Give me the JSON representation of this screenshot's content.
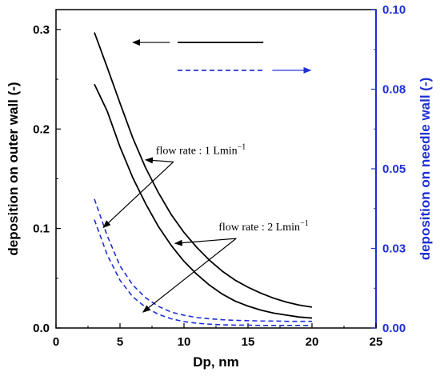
{
  "chart_data": {
    "type": "line",
    "xlabel": "Dp, nm",
    "ylabel_left": "deposition on outer wall (-)",
    "ylabel_right": "deposition on needle wall (-)",
    "xlim": [
      0,
      25
    ],
    "ylim_left": [
      0,
      0.32
    ],
    "ylim_right": [
      0,
      0.1
    ],
    "x_ticks": [
      "0",
      "5",
      "10",
      "15",
      "20",
      "25"
    ],
    "y_left_ticks": [
      "0.0",
      "0.1",
      "0.2",
      "0.3"
    ],
    "y_right_ticks": [
      "0.00",
      "0.03",
      "0.05",
      "0.08",
      "0.10"
    ],
    "grid": false,
    "series": [
      {
        "axis": "left",
        "style": "solid",
        "color": "#000000",
        "x": [
          3,
          4,
          5,
          6,
          7,
          8,
          9,
          10,
          11,
          12,
          13,
          14,
          15,
          16,
          17,
          18,
          19,
          20
        ],
        "y": [
          0.297,
          0.262,
          0.226,
          0.191,
          0.161,
          0.136,
          0.114,
          0.096,
          0.081,
          0.068,
          0.057,
          0.048,
          0.041,
          0.035,
          0.03,
          0.026,
          0.023,
          0.021
        ]
      },
      {
        "axis": "left",
        "style": "solid",
        "color": "#000000",
        "x": [
          3,
          4,
          5,
          6,
          7,
          8,
          9,
          10,
          11,
          12,
          13,
          14,
          15,
          16,
          17,
          18,
          19,
          20
        ],
        "y": [
          0.245,
          0.218,
          0.182,
          0.151,
          0.125,
          0.102,
          0.083,
          0.067,
          0.054,
          0.043,
          0.034,
          0.027,
          0.022,
          0.018,
          0.015,
          0.013,
          0.011,
          0.01
        ]
      },
      {
        "axis": "right",
        "style": "dashed",
        "color": "#1f2fd6",
        "x": [
          3,
          4,
          5,
          6,
          7,
          8,
          9,
          10,
          11,
          12,
          13,
          14,
          15,
          16,
          17,
          18,
          19,
          20
        ],
        "y": [
          0.0405,
          0.029,
          0.0195,
          0.0135,
          0.0095,
          0.0068,
          0.005,
          0.004,
          0.0033,
          0.0029,
          0.0026,
          0.0024,
          0.0023,
          0.0022,
          0.0022,
          0.0021,
          0.0021,
          0.0021
        ]
      },
      {
        "axis": "right",
        "style": "dashed",
        "color": "#1f2fd6",
        "x": [
          3,
          4,
          5,
          6,
          7,
          8,
          9,
          10,
          11,
          12,
          13,
          14,
          15,
          16,
          17,
          18,
          19,
          20
        ],
        "y": [
          0.034,
          0.023,
          0.015,
          0.0098,
          0.0065,
          0.0043,
          0.0029,
          0.002,
          0.0015,
          0.0012,
          0.001,
          0.0009,
          0.0009,
          0.0008,
          0.0008,
          0.0008,
          0.0008,
          0.0008
        ]
      }
    ],
    "annotations": [
      {
        "text": "flow rate : 1 Lmin",
        "superscript": "−1",
        "x": 7.8,
        "y_left": 0.175,
        "arrows_to": [
          [
            7.0,
            0.169
          ],
          [
            3.7,
            0.101
          ]
        ]
      },
      {
        "text": "flow rate : 2 Lmin",
        "superscript": "−1",
        "x": 12.7,
        "y_left": 0.098,
        "arrows_to": [
          [
            9.3,
            0.085
          ],
          [
            6.8,
            0.016
          ]
        ]
      }
    ],
    "legend_indicators": [
      {
        "axis": "left",
        "style": "solid",
        "color": "#000000",
        "x": [
          9.5,
          16.2
        ],
        "y_left": 0.287,
        "arrow": "left",
        "arrow_x": [
          8.9,
          6.0
        ]
      },
      {
        "axis": "right",
        "style": "dashed",
        "color": "#1f2fd6",
        "x": [
          9.5,
          16.2
        ],
        "y_left": 0.259,
        "arrow": "right",
        "arrow_x": [
          16.9,
          19.9
        ]
      }
    ],
    "colors": {
      "left_axis": "#000000",
      "right_axis": "#1f2fd6"
    }
  }
}
